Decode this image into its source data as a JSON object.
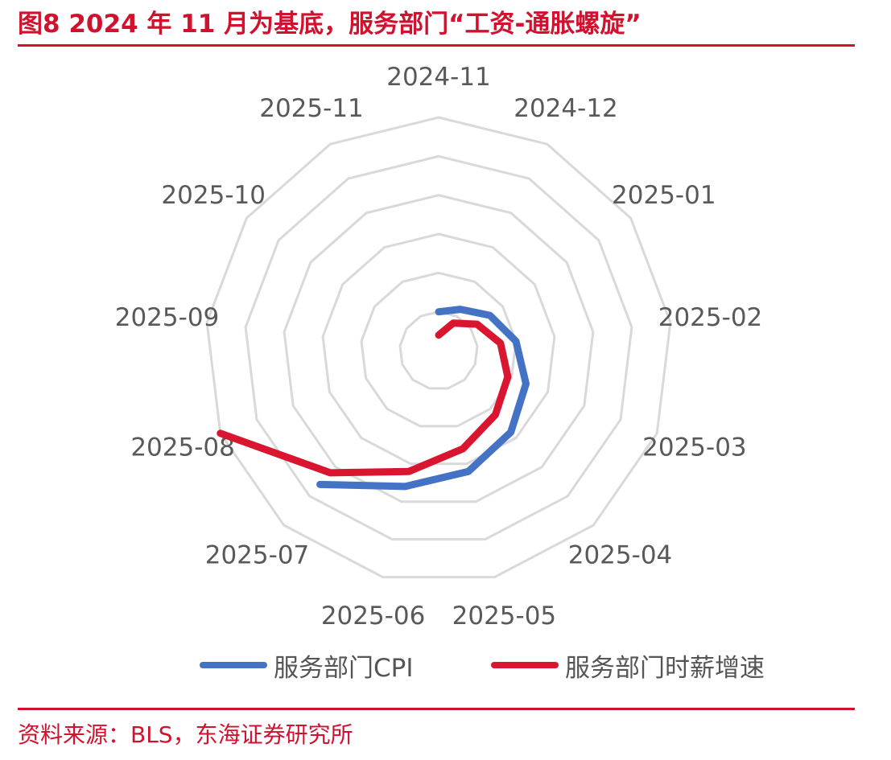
{
  "header": {
    "title": "图8  2024 年 11 月为基底，服务部门“工资-通胀螺旋”"
  },
  "footer": {
    "source": "资料来源：BLS，东海证券研究所"
  },
  "colors": {
    "accent": "#d1122f",
    "series_cpi": "#4472c4",
    "series_wage": "#d9152f",
    "grid": "#d9d9d9",
    "tick_text": "#595959"
  },
  "chart_data": {
    "type": "radar",
    "title": "",
    "categories": [
      "2024-11",
      "2024-12",
      "2025-01",
      "2025-02",
      "2025-03",
      "2025-04",
      "2025-05",
      "2025-06",
      "2025-07",
      "2025-08",
      "2025-09",
      "2025-10",
      "2025-11"
    ],
    "series": [
      {
        "name": "服务部门CPI",
        "color": "#4472c4",
        "values": [
          0.5,
          0.6,
          0.8,
          1.0,
          1.2,
          1.4,
          1.6,
          1.8,
          2.3,
          null,
          null,
          null,
          null
        ]
      },
      {
        "name": "服务部门时薪增速",
        "color": "#d9152f",
        "values": [
          0.2,
          0.4,
          0.6,
          0.8,
          0.95,
          1.1,
          1.3,
          1.6,
          2.1,
          3.0,
          null,
          null,
          null
        ]
      }
    ],
    "rlim": [
      0,
      3.0
    ],
    "ring_count": 6,
    "grid": true,
    "legend_position": "bottom"
  }
}
